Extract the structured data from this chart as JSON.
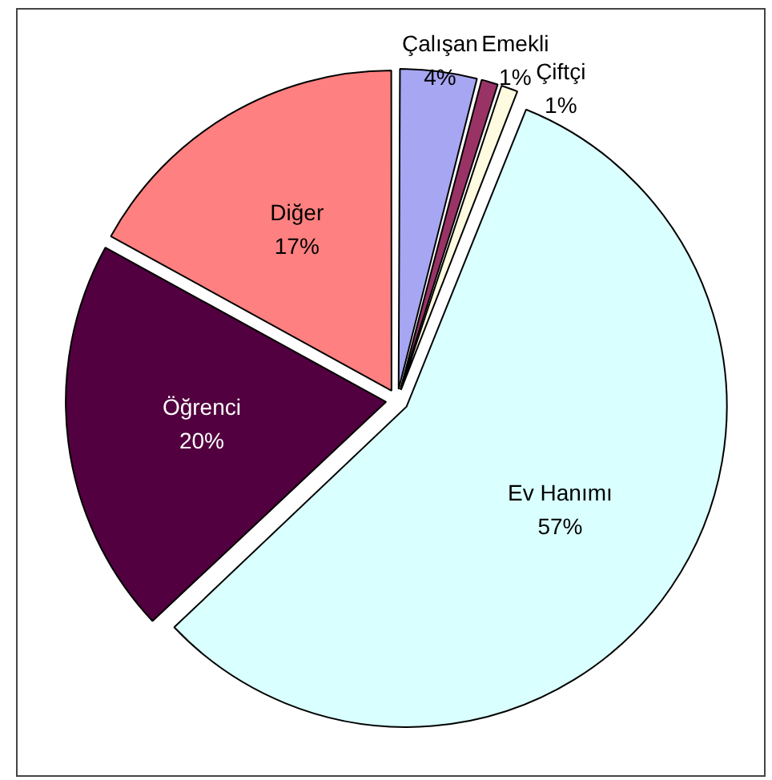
{
  "chart_data": {
    "type": "pie",
    "categories": [
      "Çalışan",
      "Emekli",
      "Çiftçi",
      "Ev Hanımı",
      "Öğrenci",
      "Diğer"
    ],
    "values": [
      4,
      1,
      1,
      57,
      20,
      17
    ],
    "value_labels": [
      "4%",
      "1%",
      "1%",
      "57%",
      "20%",
      "17%"
    ],
    "colors": [
      "#a6a6f2",
      "#993366",
      "#fffbe0",
      "#d9ffff",
      "#52003f",
      "#ff8080"
    ]
  }
}
